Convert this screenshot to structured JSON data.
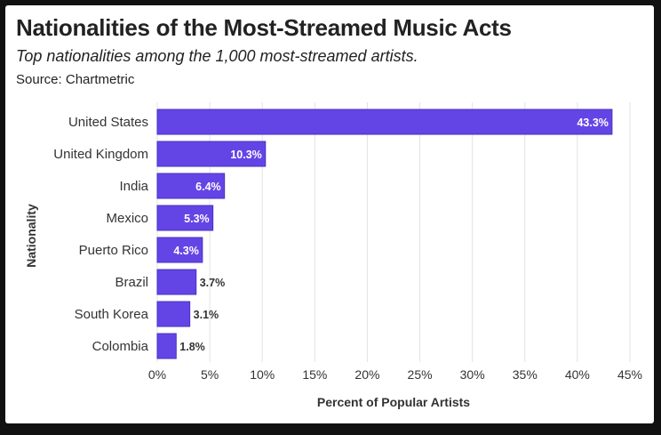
{
  "header": {
    "title": "Nationalities of the Most-Streamed Music Acts",
    "subtitle": "Top nationalities among the 1,000 most-streamed artists.",
    "source": "Source: Chartmetric"
  },
  "chart_data": {
    "type": "bar",
    "orientation": "horizontal",
    "categories": [
      "United States",
      "United Kingdom",
      "India",
      "Mexico",
      "Puerto Rico",
      "Brazil",
      "South Korea",
      "Colombia"
    ],
    "values": [
      43.3,
      10.3,
      6.4,
      5.3,
      4.3,
      3.7,
      3.1,
      1.8
    ],
    "data_labels": [
      "43.3%",
      "10.3%",
      "6.4%",
      "5.3%",
      "4.3%",
      "3.7%",
      "3.1%",
      "1.8%"
    ],
    "xlabel": "Percent of Popular Artists",
    "ylabel": "Nationality",
    "xlim": [
      0,
      45
    ],
    "xticks": [
      0,
      5,
      10,
      15,
      20,
      25,
      30,
      35,
      40,
      45
    ],
    "xtick_labels": [
      "0%",
      "5%",
      "10%",
      "15%",
      "20%",
      "25%",
      "30%",
      "35%",
      "40%",
      "45%"
    ],
    "grid": "vertical",
    "bar_color": "#6345e6",
    "bar_border_color": "#4a2fc4",
    "label_inside_color": "#ffffff",
    "label_outside_color": "#333333",
    "grid_color": "#e3e3e3"
  }
}
